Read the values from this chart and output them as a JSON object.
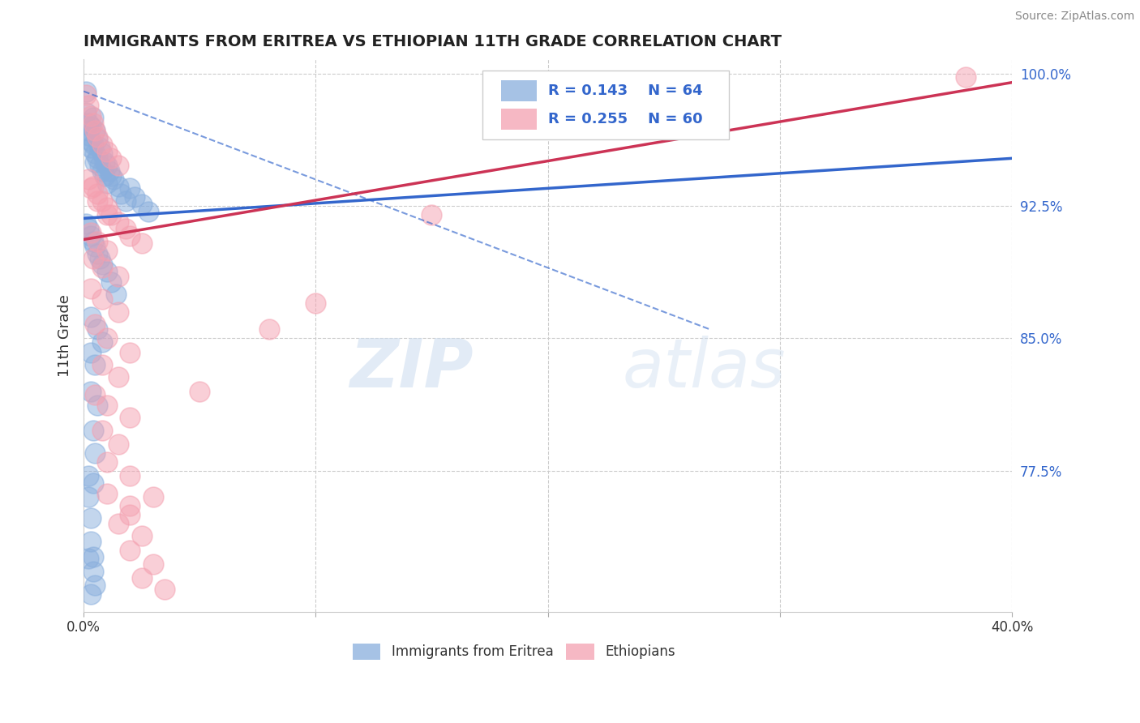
{
  "title": "IMMIGRANTS FROM ERITREA VS ETHIOPIAN 11TH GRADE CORRELATION CHART",
  "source": "Source: ZipAtlas.com",
  "ylabel": "11th Grade",
  "xlim": [
    0.0,
    0.4
  ],
  "ylim": [
    0.695,
    1.008
  ],
  "xtick_vals": [
    0.0,
    0.1,
    0.2,
    0.3,
    0.4
  ],
  "xtick_labels": [
    "0.0%",
    "",
    "",
    "",
    "40.0%"
  ],
  "ytick_vals_right": [
    1.0,
    0.925,
    0.85,
    0.775
  ],
  "ytick_labels_right": [
    "100.0%",
    "92.5%",
    "85.0%",
    "77.5%"
  ],
  "legend_r1": "R = 0.143",
  "legend_n1": "N = 64",
  "legend_r2": "R = 0.255",
  "legend_n2": "N = 60",
  "legend_xlabel1": "Immigrants from Eritrea",
  "legend_xlabel2": "Ethiopians",
  "blue_color": "#88aedd",
  "pink_color": "#f4a0b0",
  "blue_line_color": "#3366cc",
  "pink_line_color": "#cc3355",
  "accent_color": "#3366cc",
  "blue_line": [
    [
      0.0,
      0.918
    ],
    [
      0.4,
      0.952
    ]
  ],
  "pink_line": [
    [
      0.0,
      0.906
    ],
    [
      0.4,
      0.995
    ]
  ],
  "dashed_line": [
    [
      0.0,
      0.99
    ],
    [
      0.27,
      0.855
    ]
  ],
  "blue_scatter": [
    [
      0.001,
      0.99
    ],
    [
      0.001,
      0.978
    ],
    [
      0.002,
      0.972
    ],
    [
      0.002,
      0.968
    ],
    [
      0.002,
      0.965
    ],
    [
      0.003,
      0.97
    ],
    [
      0.003,
      0.962
    ],
    [
      0.003,
      0.958
    ],
    [
      0.004,
      0.975
    ],
    [
      0.004,
      0.96
    ],
    [
      0.005,
      0.968
    ],
    [
      0.005,
      0.955
    ],
    [
      0.005,
      0.95
    ],
    [
      0.006,
      0.963
    ],
    [
      0.006,
      0.952
    ],
    [
      0.007,
      0.958
    ],
    [
      0.007,
      0.948
    ],
    [
      0.008,
      0.955
    ],
    [
      0.008,
      0.945
    ],
    [
      0.009,
      0.95
    ],
    [
      0.009,
      0.942
    ],
    [
      0.01,
      0.948
    ],
    [
      0.01,
      0.938
    ],
    [
      0.011,
      0.945
    ],
    [
      0.012,
      0.942
    ],
    [
      0.013,
      0.94
    ],
    [
      0.015,
      0.936
    ],
    [
      0.016,
      0.932
    ],
    [
      0.018,
      0.928
    ],
    [
      0.02,
      0.935
    ],
    [
      0.022,
      0.93
    ],
    [
      0.025,
      0.926
    ],
    [
      0.028,
      0.922
    ],
    [
      0.001,
      0.915
    ],
    [
      0.002,
      0.912
    ],
    [
      0.003,
      0.908
    ],
    [
      0.004,
      0.905
    ],
    [
      0.005,
      0.902
    ],
    [
      0.006,
      0.898
    ],
    [
      0.007,
      0.895
    ],
    [
      0.008,
      0.892
    ],
    [
      0.01,
      0.888
    ],
    [
      0.012,
      0.882
    ],
    [
      0.014,
      0.875
    ],
    [
      0.003,
      0.862
    ],
    [
      0.006,
      0.855
    ],
    [
      0.008,
      0.848
    ],
    [
      0.003,
      0.842
    ],
    [
      0.005,
      0.835
    ],
    [
      0.003,
      0.82
    ],
    [
      0.006,
      0.812
    ],
    [
      0.004,
      0.798
    ],
    [
      0.005,
      0.785
    ],
    [
      0.002,
      0.772
    ],
    [
      0.004,
      0.768
    ],
    [
      0.002,
      0.76
    ],
    [
      0.003,
      0.748
    ],
    [
      0.003,
      0.735
    ],
    [
      0.004,
      0.726
    ],
    [
      0.004,
      0.718
    ],
    [
      0.005,
      0.71
    ],
    [
      0.003,
      0.705
    ],
    [
      0.002,
      0.725
    ]
  ],
  "pink_scatter": [
    [
      0.001,
      0.988
    ],
    [
      0.002,
      0.982
    ],
    [
      0.003,
      0.976
    ],
    [
      0.004,
      0.972
    ],
    [
      0.005,
      0.968
    ],
    [
      0.006,
      0.964
    ],
    [
      0.008,
      0.96
    ],
    [
      0.01,
      0.956
    ],
    [
      0.012,
      0.952
    ],
    [
      0.015,
      0.948
    ],
    [
      0.002,
      0.94
    ],
    [
      0.004,
      0.936
    ],
    [
      0.006,
      0.932
    ],
    [
      0.008,
      0.928
    ],
    [
      0.01,
      0.924
    ],
    [
      0.012,
      0.92
    ],
    [
      0.015,
      0.916
    ],
    [
      0.018,
      0.912
    ],
    [
      0.02,
      0.908
    ],
    [
      0.025,
      0.904
    ],
    [
      0.003,
      0.935
    ],
    [
      0.006,
      0.928
    ],
    [
      0.01,
      0.92
    ],
    [
      0.003,
      0.91
    ],
    [
      0.006,
      0.905
    ],
    [
      0.01,
      0.9
    ],
    [
      0.004,
      0.895
    ],
    [
      0.008,
      0.89
    ],
    [
      0.015,
      0.885
    ],
    [
      0.003,
      0.878
    ],
    [
      0.008,
      0.872
    ],
    [
      0.015,
      0.865
    ],
    [
      0.005,
      0.858
    ],
    [
      0.01,
      0.85
    ],
    [
      0.02,
      0.842
    ],
    [
      0.008,
      0.835
    ],
    [
      0.015,
      0.828
    ],
    [
      0.005,
      0.818
    ],
    [
      0.01,
      0.812
    ],
    [
      0.02,
      0.805
    ],
    [
      0.008,
      0.798
    ],
    [
      0.015,
      0.79
    ],
    [
      0.01,
      0.78
    ],
    [
      0.02,
      0.772
    ],
    [
      0.01,
      0.762
    ],
    [
      0.02,
      0.755
    ],
    [
      0.015,
      0.745
    ],
    [
      0.025,
      0.738
    ],
    [
      0.02,
      0.73
    ],
    [
      0.03,
      0.722
    ],
    [
      0.025,
      0.714
    ],
    [
      0.035,
      0.708
    ],
    [
      0.02,
      0.75
    ],
    [
      0.03,
      0.76
    ],
    [
      0.05,
      0.82
    ],
    [
      0.08,
      0.855
    ],
    [
      0.1,
      0.87
    ],
    [
      0.15,
      0.92
    ],
    [
      0.38,
      0.998
    ]
  ],
  "watermark_zip": "ZIP",
  "watermark_atlas": "atlas",
  "background_color": "#ffffff",
  "grid_color": "#cccccc"
}
